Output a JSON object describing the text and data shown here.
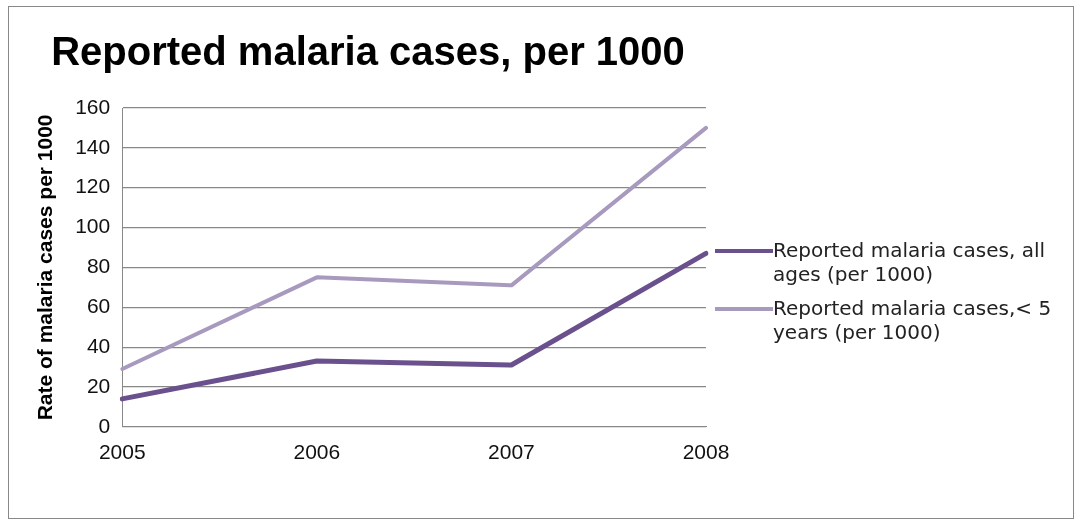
{
  "chart_data": {
    "type": "line",
    "title": "Reported malaria cases, per 1000",
    "ylabel": "Rate of malaria cases per 1000",
    "categories": [
      "2005",
      "2006",
      "2007",
      "2008"
    ],
    "series": [
      {
        "name": "Reported malaria cases, all ages (per 1000)",
        "color": "#6a518e",
        "values": [
          14,
          33,
          31,
          87
        ]
      },
      {
        "name": "Reported malaria cases,< 5 years (per 1000)",
        "color": "#a899bf",
        "values": [
          29,
          75,
          71,
          150
        ]
      }
    ],
    "ylim": [
      0,
      160
    ],
    "yticks": [
      0,
      20,
      40,
      60,
      80,
      100,
      120,
      140,
      160
    ],
    "grid": "y",
    "legend": "right",
    "marker": "none",
    "line_style": "solid"
  }
}
